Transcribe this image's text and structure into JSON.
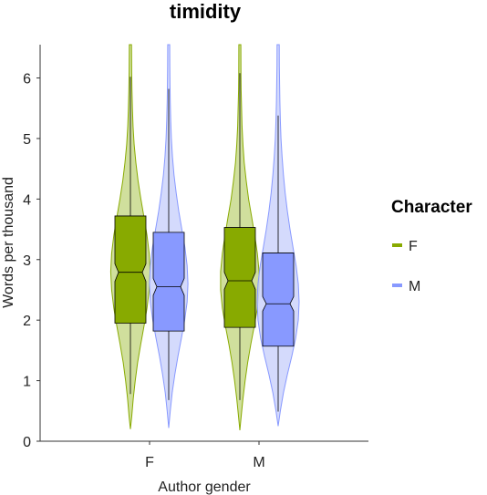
{
  "chart_data": {
    "type": "violin",
    "title": "timidity",
    "xlabel": "Author gender",
    "ylabel": "Words per thousand",
    "categories": [
      "F",
      "M"
    ],
    "ylim": [
      0,
      6.55
    ],
    "yticks": [
      0,
      1,
      2,
      3,
      4,
      5,
      6
    ],
    "grid": false,
    "legend": {
      "title": "Character",
      "placement": "right"
    },
    "series": [
      {
        "name": "F",
        "color": "#88aa00",
        "fill": "#c8d98c",
        "groups": [
          {
            "category": "F",
            "q1": 1.95,
            "median": 2.79,
            "q3": 3.72,
            "notch_low": 2.64,
            "notch_high": 2.93,
            "whisker_low": 0.78,
            "whisker_high": 6.02,
            "density": [
              [
                0.2,
                0
              ],
              [
                0.4,
                0.06
              ],
              [
                0.7,
                0.13
              ],
              [
                1.0,
                0.22
              ],
              [
                1.3,
                0.33
              ],
              [
                1.6,
                0.47
              ],
              [
                1.9,
                0.62
              ],
              [
                2.2,
                0.76
              ],
              [
                2.5,
                0.86
              ],
              [
                2.8,
                0.9
              ],
              [
                3.1,
                0.86
              ],
              [
                3.4,
                0.76
              ],
              [
                3.7,
                0.62
              ],
              [
                4.0,
                0.48
              ],
              [
                4.3,
                0.35
              ],
              [
                4.6,
                0.25
              ],
              [
                4.9,
                0.17
              ],
              [
                5.2,
                0.12
              ],
              [
                5.5,
                0.09
              ],
              [
                5.8,
                0.07
              ],
              [
                6.1,
                0.06
              ],
              [
                6.55,
                0.05
              ]
            ]
          },
          {
            "category": "M",
            "q1": 1.88,
            "median": 2.65,
            "q3": 3.53,
            "notch_low": 2.51,
            "notch_high": 2.79,
            "whisker_low": 0.68,
            "whisker_high": 6.08,
            "density": [
              [
                0.18,
                0
              ],
              [
                0.4,
                0.06
              ],
              [
                0.7,
                0.14
              ],
              [
                1.0,
                0.24
              ],
              [
                1.3,
                0.36
              ],
              [
                1.6,
                0.5
              ],
              [
                1.9,
                0.66
              ],
              [
                2.2,
                0.8
              ],
              [
                2.5,
                0.88
              ],
              [
                2.8,
                0.88
              ],
              [
                3.1,
                0.8
              ],
              [
                3.4,
                0.68
              ],
              [
                3.7,
                0.54
              ],
              [
                4.0,
                0.4
              ],
              [
                4.3,
                0.29
              ],
              [
                4.6,
                0.2
              ],
              [
                4.9,
                0.14
              ],
              [
                5.2,
                0.1
              ],
              [
                5.5,
                0.08
              ],
              [
                5.8,
                0.06
              ],
              [
                6.1,
                0.05
              ],
              [
                6.55,
                0.045
              ]
            ]
          }
        ]
      },
      {
        "name": "M",
        "color": "#8899ff",
        "fill": "#ccd4fc",
        "groups": [
          {
            "category": "F",
            "q1": 1.82,
            "median": 2.55,
            "q3": 3.45,
            "notch_low": 2.41,
            "notch_high": 2.69,
            "whisker_low": 0.68,
            "whisker_high": 5.82,
            "density": [
              [
                0.22,
                0
              ],
              [
                0.5,
                0.07
              ],
              [
                0.8,
                0.16
              ],
              [
                1.1,
                0.28
              ],
              [
                1.4,
                0.42
              ],
              [
                1.7,
                0.58
              ],
              [
                2.0,
                0.73
              ],
              [
                2.3,
                0.84
              ],
              [
                2.6,
                0.88
              ],
              [
                2.9,
                0.84
              ],
              [
                3.2,
                0.74
              ],
              [
                3.5,
                0.6
              ],
              [
                3.8,
                0.46
              ],
              [
                4.1,
                0.34
              ],
              [
                4.4,
                0.24
              ],
              [
                4.7,
                0.17
              ],
              [
                5.0,
                0.12
              ],
              [
                5.3,
                0.09
              ],
              [
                5.6,
                0.07
              ],
              [
                5.9,
                0.06
              ],
              [
                6.2,
                0.05
              ],
              [
                6.55,
                0.045
              ]
            ]
          },
          {
            "category": "M",
            "q1": 1.57,
            "median": 2.27,
            "q3": 3.11,
            "notch_low": 2.15,
            "notch_high": 2.39,
            "whisker_low": 0.49,
            "whisker_high": 5.38,
            "density": [
              [
                0.25,
                0
              ],
              [
                0.5,
                0.1
              ],
              [
                0.8,
                0.24
              ],
              [
                1.1,
                0.42
              ],
              [
                1.4,
                0.62
              ],
              [
                1.7,
                0.8
              ],
              [
                2.0,
                0.92
              ],
              [
                2.3,
                0.96
              ],
              [
                2.6,
                0.92
              ],
              [
                2.9,
                0.82
              ],
              [
                3.2,
                0.68
              ],
              [
                3.5,
                0.54
              ],
              [
                3.8,
                0.42
              ],
              [
                4.1,
                0.32
              ],
              [
                4.4,
                0.24
              ],
              [
                4.7,
                0.18
              ],
              [
                5.0,
                0.13
              ],
              [
                5.3,
                0.1
              ],
              [
                5.6,
                0.08
              ],
              [
                5.9,
                0.065
              ],
              [
                6.2,
                0.055
              ],
              [
                6.55,
                0.05
              ]
            ]
          }
        ]
      }
    ]
  }
}
